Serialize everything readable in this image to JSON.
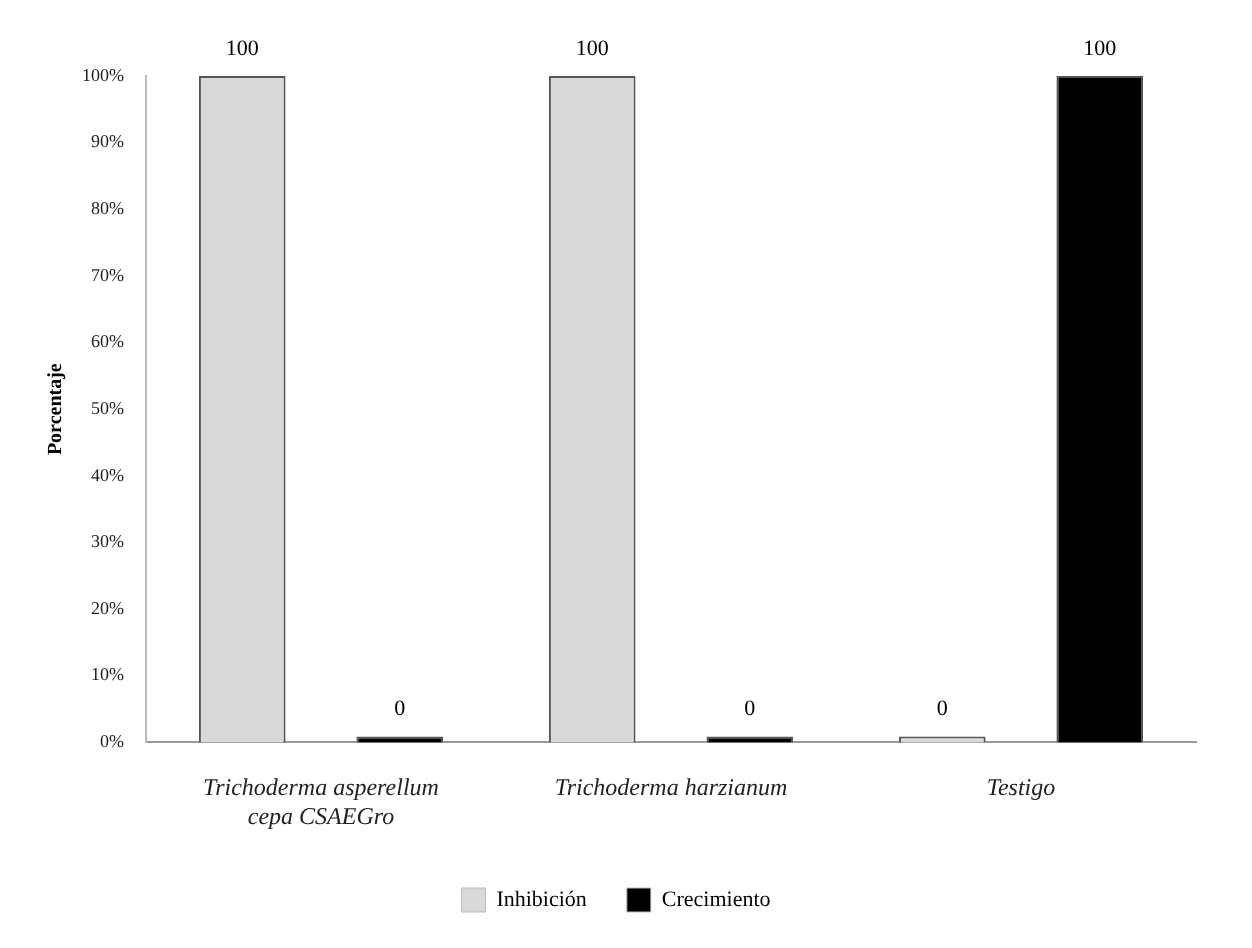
{
  "chart_data": {
    "type": "bar",
    "ylabel": "Porcentaje",
    "categories": [
      "Trichoderma asperellum cepa CSAEGro",
      "Trichoderma harzianum",
      "Testigo"
    ],
    "series": [
      {
        "name": "Inhibición",
        "color": "#d9d9d9",
        "values": [
          100,
          100,
          0
        ]
      },
      {
        "name": "Crecimiento",
        "color": "#000000",
        "values": [
          0,
          0,
          100
        ]
      }
    ],
    "ylim": [
      0,
      100
    ],
    "yticks": [
      {
        "value": 0,
        "label": "0%"
      },
      {
        "value": 10,
        "label": "10%"
      },
      {
        "value": 20,
        "label": "20%"
      },
      {
        "value": 30,
        "label": "30%"
      },
      {
        "value": 40,
        "label": "40%"
      },
      {
        "value": 50,
        "label": "50%"
      },
      {
        "value": 60,
        "label": "60%"
      },
      {
        "value": 70,
        "label": "70%"
      },
      {
        "value": 80,
        "label": "80%"
      },
      {
        "value": 90,
        "label": "90%"
      },
      {
        "value": 100,
        "label": "100%"
      }
    ],
    "data_labels": true,
    "legend": "bottom",
    "grid": false
  }
}
